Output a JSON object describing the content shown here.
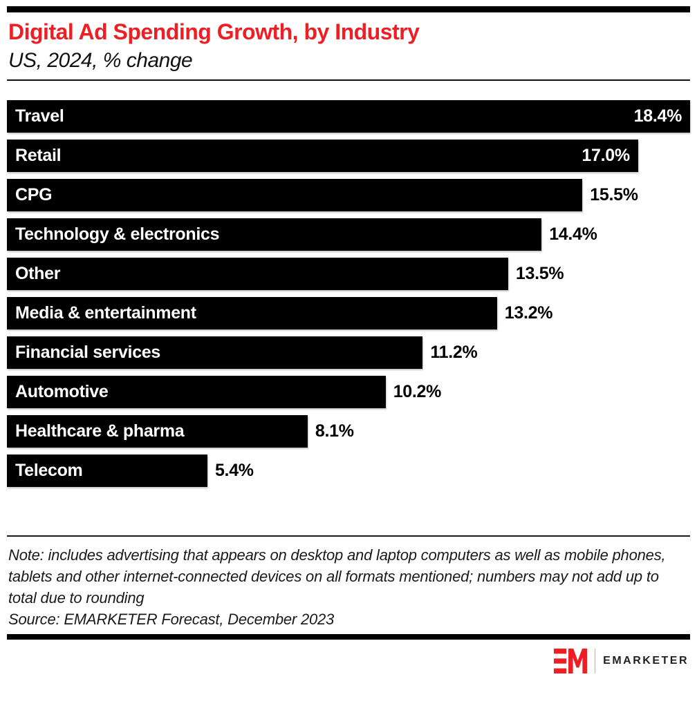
{
  "header": {
    "title": "Digital Ad Spending Growth, by Industry",
    "subtitle": "US, 2024, % change"
  },
  "chart_data": {
    "type": "bar",
    "orientation": "horizontal",
    "title": "Digital Ad Spending Growth, by Industry",
    "subtitle": "US, 2024, % change",
    "categories": [
      "Travel",
      "Retail",
      "CPG",
      "Technology & electronics",
      "Other",
      "Media & entertainment",
      "Financial services",
      "Automotive",
      "Healthcare & pharma",
      "Telecom"
    ],
    "values": [
      18.4,
      17.0,
      15.5,
      14.4,
      13.5,
      13.2,
      11.2,
      10.2,
      8.1,
      5.4
    ],
    "value_labels": [
      "18.4%",
      "17.0%",
      "15.5%",
      "14.4%",
      "13.5%",
      "13.2%",
      "11.2%",
      "10.2%",
      "8.1%",
      "5.4%"
    ],
    "value_label_inside": [
      true,
      true,
      false,
      false,
      false,
      false,
      false,
      false,
      false,
      false
    ],
    "xlim": [
      0,
      18.4
    ],
    "xlabel": "",
    "ylabel": "",
    "grid": false,
    "legend": false,
    "bar_color": "#000000",
    "bar_label_color": "#ffffff",
    "value_color_inside": "#ffffff",
    "value_color_outside": "#000000"
  },
  "footer": {
    "note": "Note: includes advertising that appears on desktop and laptop computers as well as mobile phones, tablets and other internet-connected devices on all formats mentioned; numbers may not add up to total due to rounding",
    "source": "Source: EMARKETER Forecast, December 2023",
    "brand": "EMARKETER"
  },
  "colors": {
    "accent_red": "#ed1f24",
    "bar": "#000000",
    "rule": "#000000",
    "wordmark": "#231f20"
  }
}
